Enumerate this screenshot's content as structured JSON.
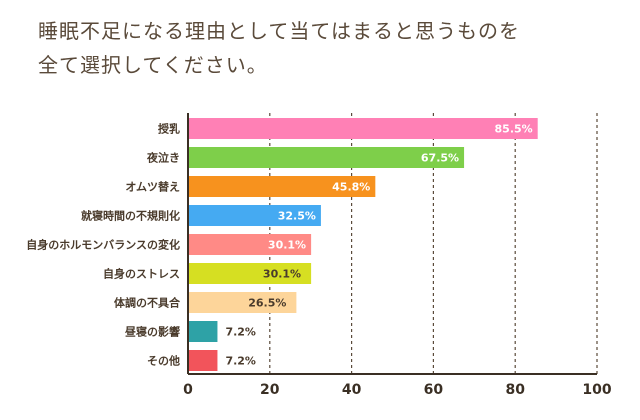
{
  "title_lines": [
    "睡眠不足になる理由として当てはまると思うものを",
    "全て選択してください。"
  ],
  "chart_data": {
    "type": "bar",
    "orientation": "horizontal",
    "categories": [
      "授乳",
      "夜泣き",
      "オムツ替え",
      "就寝時間の不規則化",
      "自身のホルモンバランスの変化",
      "自身のストレス",
      "体調の不具合",
      "昼寝の影響",
      "その他"
    ],
    "values": [
      85.5,
      67.5,
      45.8,
      32.5,
      30.1,
      30.1,
      26.5,
      7.2,
      7.2
    ],
    "value_labels": [
      "85.5%",
      "67.5%",
      "45.8%",
      "32.5%",
      "30.1%",
      "30.1%",
      "26.5%",
      "7.2%",
      "7.2%"
    ],
    "colors": [
      "#ff80b5",
      "#7ecf4a",
      "#f7921e",
      "#45aaf2",
      "#ff8a86",
      "#d6df22",
      "#fdd59a",
      "#2ea2a6",
      "#f2545b"
    ],
    "value_label_colors": [
      "#ffffff",
      "#ffffff",
      "#ffffff",
      "#ffffff",
      "#ffffff",
      "#4a3b2c",
      "#4a3b2c",
      "#4a3b2c",
      "#4a3b2c"
    ],
    "value_label_inside": [
      true,
      true,
      true,
      true,
      true,
      true,
      true,
      false,
      false
    ],
    "xlim": [
      0,
      100
    ],
    "xticks": [
      0,
      20,
      40,
      60,
      80,
      100
    ],
    "xtick_labels": [
      "0",
      "20",
      "40",
      "60",
      "80",
      "100"
    ],
    "grid": "vertical-dashed"
  }
}
